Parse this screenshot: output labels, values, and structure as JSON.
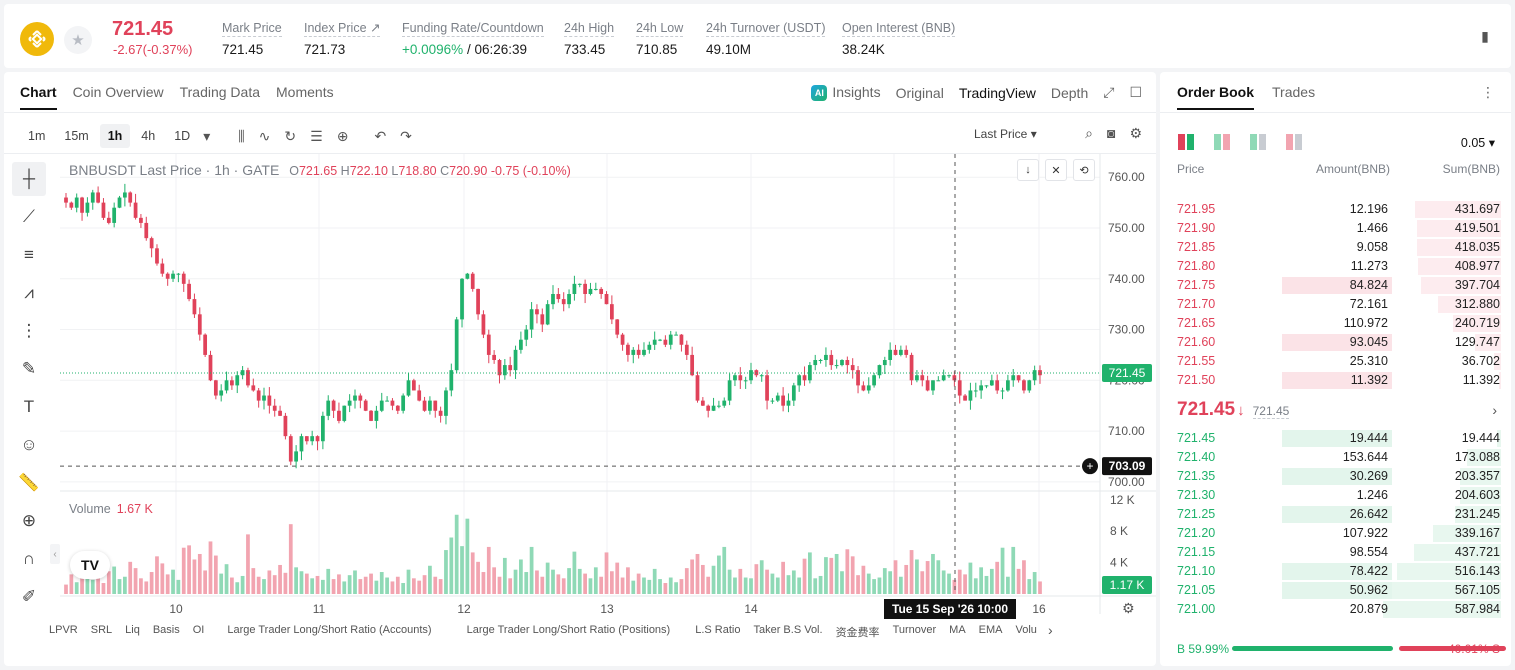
{
  "ticker": {
    "last_price": "721.45",
    "change": "-2.67(-0.37%)",
    "stats": [
      {
        "label": "Mark Price",
        "value": "721.45"
      },
      {
        "label": "Index Price ↗",
        "value": "721.73"
      },
      {
        "label": "Funding Rate/Countdown",
        "value_green": "+0.0096%",
        "value": " / 06:26:39"
      },
      {
        "label": "24h High",
        "value": "733.45"
      },
      {
        "label": "24h Low",
        "value": "710.85"
      },
      {
        "label": "24h Turnover (USDT)",
        "value": "49.10M"
      },
      {
        "label": "Open Interest (BNB)",
        "value": "38.24K"
      }
    ]
  },
  "chart_tabs": [
    "Chart",
    "Coin Overview",
    "Trading Data",
    "Moments"
  ],
  "chart_views": {
    "insights": "Insights",
    "original": "Original",
    "tradingview": "TradingView",
    "depth": "Depth"
  },
  "timeframes": [
    "1m",
    "15m",
    "1h",
    "4h",
    "1D"
  ],
  "price_type": "Last Price",
  "legend": {
    "title": "BNBUSDT Last Price · 1h · GATE",
    "o": "721.65",
    "h": "722.10",
    "l": "718.80",
    "c": "720.90",
    "chg": "-0.75 (-0.10%)"
  },
  "volume_legend": {
    "label": "Volume",
    "value": "1.67 K"
  },
  "crosshair_time": "Tue 15 Sep '26    10:00",
  "indicators": [
    "LPVR",
    "SRL",
    "Liq",
    "Basis",
    "OI",
    "Large Trader Long/Short Ratio (Accounts)",
    "Large Trader Long/Short Ratio (Positions)",
    "L.S Ratio",
    "Taker B.S Vol.",
    "资金费率",
    "Turnover",
    "MA",
    "EMA",
    "Volu"
  ],
  "chart_data": {
    "type": "candlestick",
    "title": "BNBUSDT Last Price · 1h · GATE",
    "y_ticks": [
      "760.00",
      "750.00",
      "740.00",
      "730.00",
      "720.00",
      "710.00",
      "700.00"
    ],
    "ylim": [
      698,
      763
    ],
    "x_ticks": [
      "10",
      "11",
      "12",
      "13",
      "14",
      "15",
      "16"
    ],
    "current_price_label": "721.45",
    "crosshair_price_label": "703.09",
    "volume_ticks": [
      "12 K",
      "8 K",
      "4 K"
    ],
    "volume_ylim": [
      0,
      13
    ],
    "current_volume_label": "1.17 K",
    "grid": true,
    "close_series": [
      755,
      754,
      756,
      753,
      755,
      757,
      755,
      752,
      751,
      754,
      756,
      757,
      755,
      752,
      751,
      748,
      746,
      743,
      741,
      740,
      741,
      741,
      739,
      736,
      733,
      729,
      725,
      720,
      717,
      718,
      720,
      719,
      721,
      722,
      719,
      718,
      716,
      717,
      715,
      714,
      713,
      709,
      704,
      706,
      709,
      708,
      709,
      708,
      713,
      716,
      714,
      712,
      715,
      716,
      717,
      716,
      714,
      712,
      714,
      716,
      716,
      715,
      714,
      717,
      720,
      718,
      716,
      714,
      716,
      714,
      713,
      718,
      722,
      732,
      740,
      741,
      738,
      733,
      729,
      725,
      724,
      721,
      723,
      722,
      726,
      728,
      730,
      734,
      733,
      731,
      735,
      737,
      736,
      735,
      737,
      739,
      739,
      737,
      738,
      738,
      737,
      735,
      732,
      729,
      727,
      725,
      726,
      725,
      726,
      727,
      728,
      728,
      727,
      729,
      729,
      727,
      725,
      721,
      716,
      715,
      714,
      715,
      715,
      716,
      720,
      721,
      720,
      720,
      722,
      721,
      721,
      716,
      716,
      717,
      715,
      716,
      719,
      721,
      720,
      723,
      724,
      724,
      725,
      723,
      723,
      724,
      723,
      722,
      719,
      718,
      719,
      721,
      723,
      724,
      726,
      725,
      726,
      725,
      720,
      721,
      720,
      718,
      720,
      720,
      721,
      721,
      720,
      717,
      716,
      718,
      718,
      719,
      719,
      720,
      718,
      718,
      720,
      721,
      720,
      718,
      720,
      722,
      721
    ],
    "volume_series": [
      1.2,
      2.5,
      1.5,
      3.0,
      2.1,
      1.8,
      2.6,
      1.4,
      2.9,
      3.5,
      1.9,
      2.2,
      4.1,
      3.3,
      2.0,
      1.6,
      2.8,
      4.8,
      3.9,
      2.5,
      3.1,
      1.8,
      5.9,
      6.2,
      4.4,
      5.1,
      3.0,
      6.7,
      4.9,
      2.6,
      3.8,
      2.1,
      1.5,
      2.3,
      7.6,
      3.3,
      2.2,
      1.9,
      3.0,
      2.4,
      3.7,
      2.7,
      8.9,
      3.4,
      2.9,
      2.6,
      2.0,
      2.3,
      1.8,
      3.2,
      1.9,
      2.5,
      1.6,
      2.4,
      3.0,
      1.9,
      2.2,
      2.6,
      1.7,
      2.8,
      2.1,
      1.6,
      2.2,
      1.4,
      3.1,
      2.0,
      1.7,
      2.4,
      3.6,
      2.2,
      1.9,
      5.6,
      7.2,
      10.1,
      6.1,
      9.6,
      5.3,
      4.1,
      2.8,
      6.0,
      3.4,
      2.2,
      4.6,
      2.0,
      3.1,
      4.4,
      2.8,
      6.0,
      3.0,
      2.2,
      4.0,
      3.1,
      2.5,
      2.0,
      3.3,
      5.4,
      3.2,
      2.6,
      2.0,
      3.4,
      2.2,
      5.3,
      2.9,
      4.0,
      2.1,
      3.4,
      1.7,
      2.6,
      2.1,
      1.8,
      3.2,
      1.9,
      1.4,
      2.1,
      1.5,
      1.9,
      3.3,
      4.4,
      5.1,
      3.7,
      2.2,
      3.6,
      4.9,
      6.0,
      3.1,
      2.1,
      3.2,
      2.1,
      2.0,
      3.8,
      4.3,
      3.1,
      2.6,
      2.1,
      4.1,
      2.4,
      3.0,
      2.1,
      4.5,
      5.3,
      2.0,
      2.3,
      4.7,
      4.6,
      5.1,
      2.9,
      5.7,
      4.8,
      2.4,
      3.6,
      2.6,
      1.9,
      2.1,
      3.3,
      2.9,
      4.3,
      2.2,
      3.7,
      5.6,
      4.4,
      2.9,
      4.2,
      5.1,
      4.3,
      3.0,
      2.6,
      1.8,
      3.1,
      2.5,
      4.0,
      2.0,
      3.4,
      2.3,
      3.2,
      4.1,
      5.9,
      2.2,
      6.0,
      3.2,
      4.3,
      1.9,
      2.8,
      1.6
    ]
  },
  "orderbook": {
    "tabs": [
      "Order Book",
      "Trades"
    ],
    "step": "0.05 ▾",
    "headers": {
      "price": "Price",
      "amount": "Amount(BNB)",
      "sum": "Sum(BNB)"
    },
    "asks": [
      {
        "price": "721.95",
        "amount": "12.196",
        "sum": "431.697",
        "amount_frac": 0.0,
        "sum_frac": 0.73
      },
      {
        "price": "721.90",
        "amount": "1.466",
        "sum": "419.501",
        "amount_frac": 0.0,
        "sum_frac": 0.71
      },
      {
        "price": "721.85",
        "amount": "9.058",
        "sum": "418.035",
        "amount_frac": 0.0,
        "sum_frac": 0.71
      },
      {
        "price": "721.80",
        "amount": "11.273",
        "sum": "408.977",
        "amount_frac": 0.0,
        "sum_frac": 0.7
      },
      {
        "price": "721.75",
        "amount": "84.824",
        "sum": "397.704",
        "amount_frac": 0.36,
        "sum_frac": 0.68
      },
      {
        "price": "721.70",
        "amount": "72.161",
        "sum": "312.880",
        "amount_frac": 0.0,
        "sum_frac": 0.53
      },
      {
        "price": "721.65",
        "amount": "110.972",
        "sum": "240.719",
        "amount_frac": 0.0,
        "sum_frac": 0.41
      },
      {
        "price": "721.60",
        "amount": "93.045",
        "sum": "129.747",
        "amount_frac": 0.4,
        "sum_frac": 0.22
      },
      {
        "price": "721.55",
        "amount": "25.310",
        "sum": "36.702",
        "amount_frac": 0.0,
        "sum_frac": 0.06
      },
      {
        "price": "721.50",
        "amount": "11.392",
        "sum": "11.392",
        "amount_frac": 0.36,
        "sum_frac": 0.02
      }
    ],
    "mid": {
      "price": "721.45",
      "arrow": "🡓",
      "mark": "721.45"
    },
    "bids": [
      {
        "price": "721.45",
        "amount": "19.444",
        "sum": "19.444",
        "amount_frac": 0.36,
        "sum_frac": 0.03
      },
      {
        "price": "721.40",
        "amount": "153.644",
        "sum": "173.088",
        "amount_frac": 0.0,
        "sum_frac": 0.29
      },
      {
        "price": "721.35",
        "amount": "30.269",
        "sum": "203.357",
        "amount_frac": 0.36,
        "sum_frac": 0.35
      },
      {
        "price": "721.30",
        "amount": "1.246",
        "sum": "204.603",
        "amount_frac": 0.0,
        "sum_frac": 0.35
      },
      {
        "price": "721.25",
        "amount": "26.642",
        "sum": "231.245",
        "amount_frac": 0.36,
        "sum_frac": 0.39
      },
      {
        "price": "721.20",
        "amount": "107.922",
        "sum": "339.167",
        "amount_frac": 0.0,
        "sum_frac": 0.58
      },
      {
        "price": "721.15",
        "amount": "98.554",
        "sum": "437.721",
        "amount_frac": 0.0,
        "sum_frac": 0.74
      },
      {
        "price": "721.10",
        "amount": "78.422",
        "sum": "516.143",
        "amount_frac": 0.36,
        "sum_frac": 0.88
      },
      {
        "price": "721.05",
        "amount": "50.962",
        "sum": "567.105",
        "amount_frac": 0.36,
        "sum_frac": 0.96
      },
      {
        "price": "721.00",
        "amount": "20.879",
        "sum": "587.984",
        "amount_frac": 0.0,
        "sum_frac": 1.0
      }
    ],
    "buy_ratio": "B 59.99%",
    "sell_ratio": "40.01% S",
    "buy_frac": 0.5999
  },
  "colors": {
    "up": "#20b26c",
    "down": "#e0425a",
    "up_vol": "#8fd9b6",
    "down_vol": "#f2a4b0"
  }
}
